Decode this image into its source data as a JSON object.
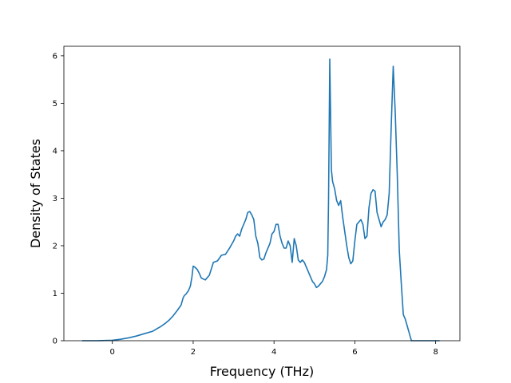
{
  "chart_data": {
    "type": "line",
    "title": "",
    "xlabel": "Frequency (THz)",
    "ylabel": "Density of States",
    "xlim": [
      -1.2,
      8.6
    ],
    "ylim": [
      0,
      6.2
    ],
    "xticks": [
      0,
      2,
      4,
      6,
      8
    ],
    "xtick_labels": [
      "0",
      "2",
      "4",
      "6",
      "8"
    ],
    "yticks": [
      0,
      1,
      2,
      3,
      4,
      5,
      6
    ],
    "ytick_labels": [
      "0",
      "1",
      "2",
      "3",
      "4",
      "5",
      "6"
    ],
    "grid": false,
    "legend": "none",
    "series": [
      {
        "color": "#1f77b4",
        "x": [
          -0.75,
          -0.4,
          0,
          0.2,
          0.4,
          0.6,
          0.8,
          1.0,
          1.1,
          1.2,
          1.3,
          1.4,
          1.5,
          1.6,
          1.7,
          1.75,
          1.78,
          1.82,
          1.88,
          1.93,
          1.97,
          2.0,
          2.04,
          2.1,
          2.15,
          2.2,
          2.3,
          2.4,
          2.5,
          2.6,
          2.7,
          2.8,
          2.9,
          3.0,
          3.05,
          3.1,
          3.15,
          3.2,
          3.25,
          3.3,
          3.35,
          3.4,
          3.45,
          3.5,
          3.55,
          3.6,
          3.65,
          3.7,
          3.75,
          3.8,
          3.85,
          3.9,
          3.95,
          4.0,
          4.05,
          4.1,
          4.15,
          4.2,
          4.25,
          4.3,
          4.35,
          4.4,
          4.45,
          4.5,
          4.55,
          4.6,
          4.65,
          4.7,
          4.75,
          4.8,
          4.85,
          4.9,
          4.95,
          5.0,
          5.05,
          5.1,
          5.15,
          5.2,
          5.25,
          5.3,
          5.33,
          5.35,
          5.38,
          5.42,
          5.45,
          5.5,
          5.55,
          5.6,
          5.65,
          5.7,
          5.75,
          5.8,
          5.85,
          5.9,
          5.95,
          6.0,
          6.05,
          6.1,
          6.15,
          6.2,
          6.25,
          6.3,
          6.35,
          6.4,
          6.45,
          6.5,
          6.55,
          6.6,
          6.65,
          6.7,
          6.75,
          6.8,
          6.85,
          6.9,
          6.95,
          7.0,
          7.05,
          7.1,
          7.15,
          7.2,
          7.25,
          7.3,
          7.35,
          7.4,
          7.5,
          7.8,
          8.1
        ],
        "y": [
          0,
          0,
          0.01,
          0.03,
          0.06,
          0.1,
          0.15,
          0.2,
          0.25,
          0.3,
          0.36,
          0.43,
          0.52,
          0.63,
          0.75,
          0.9,
          0.95,
          0.98,
          1.05,
          1.15,
          1.35,
          1.57,
          1.55,
          1.5,
          1.42,
          1.32,
          1.28,
          1.38,
          1.65,
          1.68,
          1.8,
          1.82,
          1.95,
          2.1,
          2.2,
          2.25,
          2.2,
          2.35,
          2.45,
          2.55,
          2.7,
          2.72,
          2.65,
          2.55,
          2.2,
          2.05,
          1.75,
          1.7,
          1.72,
          1.85,
          1.95,
          2.05,
          2.25,
          2.3,
          2.45,
          2.45,
          2.2,
          2.05,
          1.95,
          1.95,
          2.1,
          2.0,
          1.65,
          2.15,
          2.0,
          1.7,
          1.65,
          1.7,
          1.65,
          1.55,
          1.45,
          1.35,
          1.25,
          1.2,
          1.12,
          1.15,
          1.2,
          1.25,
          1.35,
          1.5,
          1.8,
          3.0,
          5.93,
          3.6,
          3.35,
          3.2,
          2.95,
          2.85,
          2.95,
          2.6,
          2.3,
          2.0,
          1.75,
          1.62,
          1.68,
          2.1,
          2.45,
          2.5,
          2.55,
          2.45,
          2.15,
          2.2,
          2.8,
          3.1,
          3.18,
          3.15,
          2.7,
          2.55,
          2.4,
          2.5,
          2.55,
          2.65,
          3.1,
          4.5,
          5.78,
          4.8,
          3.5,
          1.9,
          1.2,
          0.55,
          0.45,
          0.3,
          0.15,
          0,
          0,
          0,
          0
        ]
      }
    ]
  }
}
